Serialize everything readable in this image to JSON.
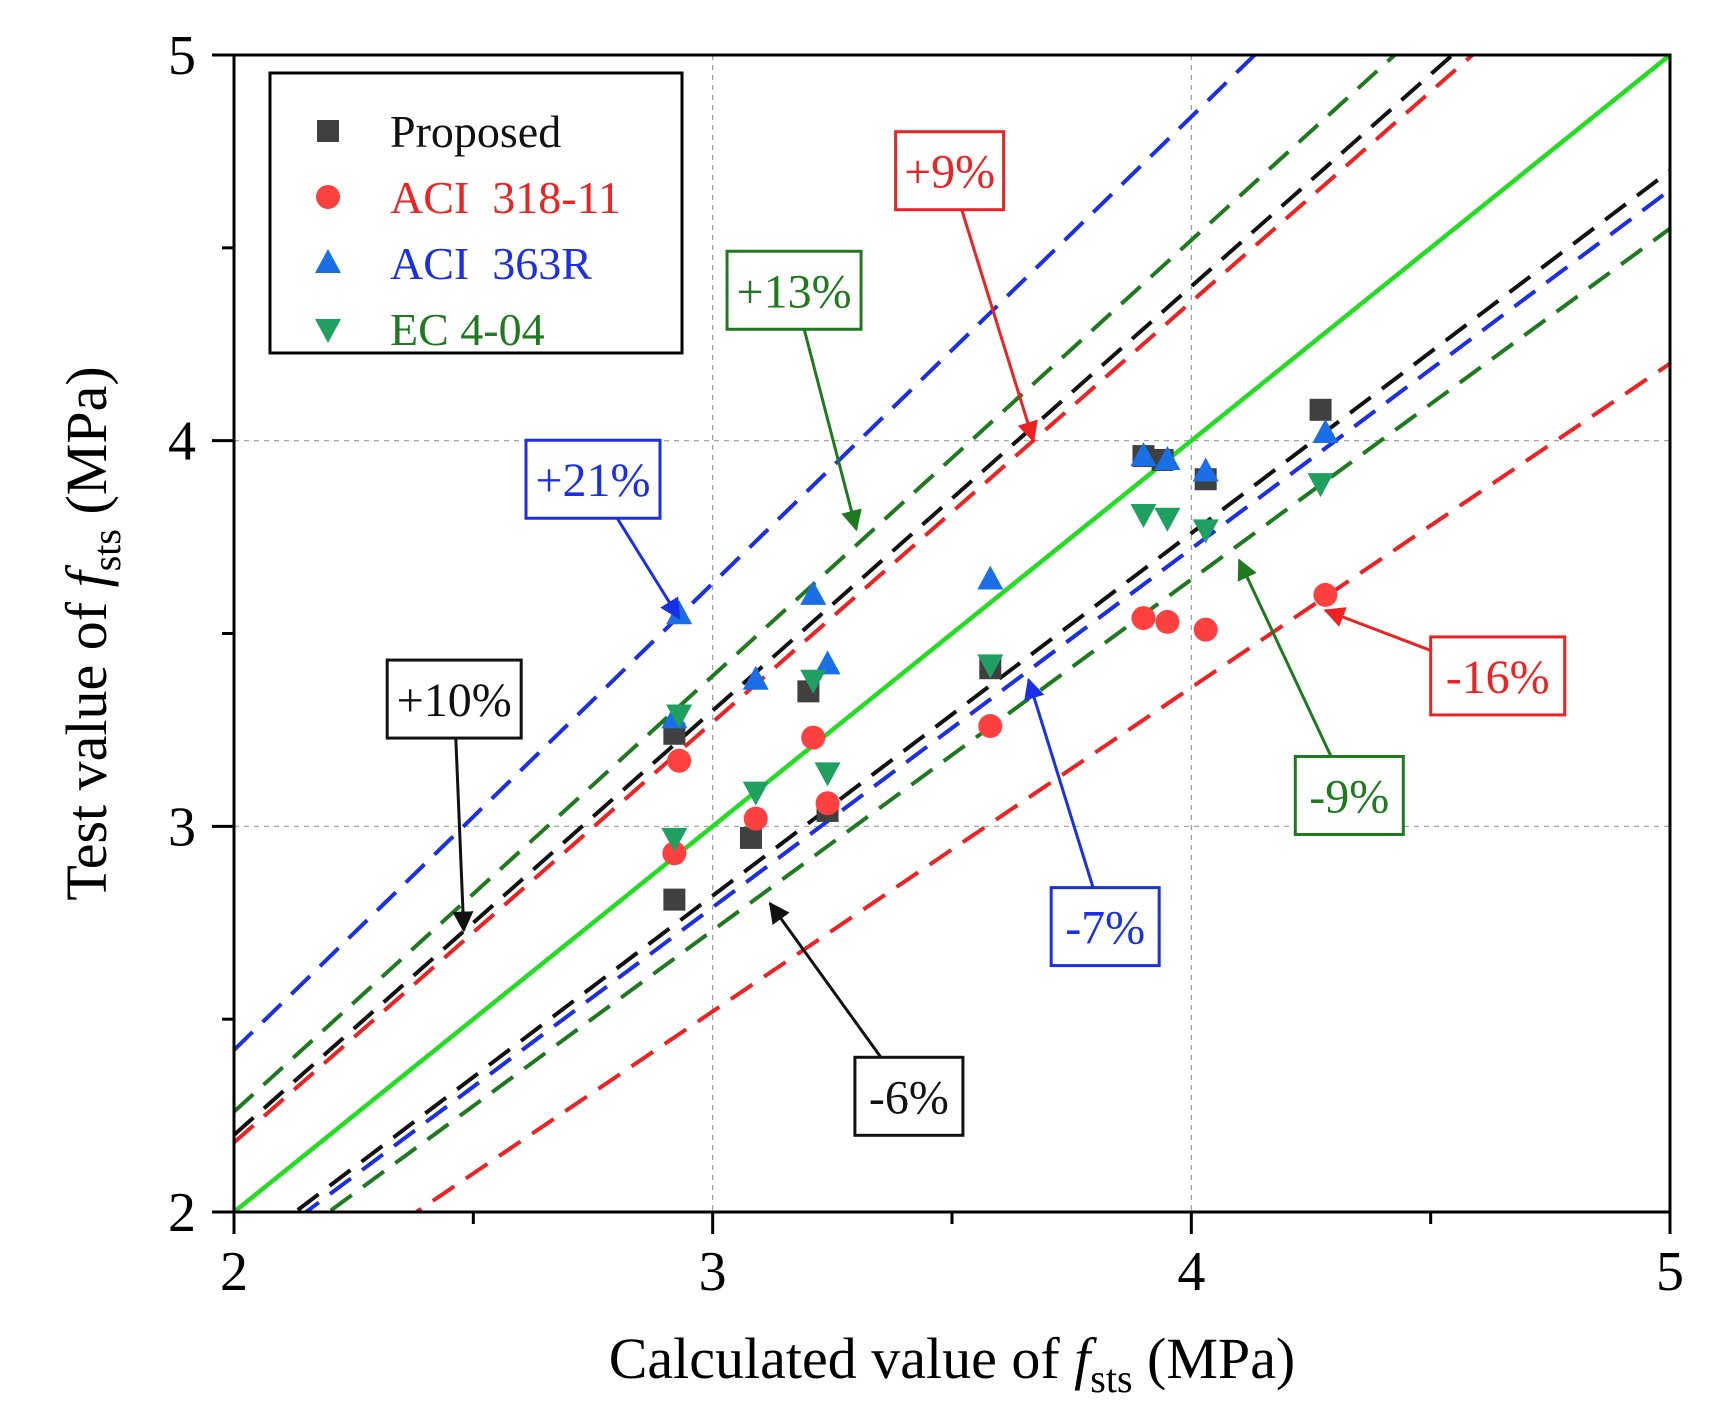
{
  "chart_data": {
    "type": "scatter",
    "xlabel": {
      "prefix": "Calculated value of ",
      "symbol": "f",
      "subscript": "sts",
      "suffix": " (MPa)"
    },
    "ylabel": {
      "prefix": "Test value of ",
      "symbol": "f",
      "subscript": "sts",
      "suffix": " (MPa)"
    },
    "xlim": [
      2,
      5
    ],
    "ylim": [
      2,
      5
    ],
    "xticks": [
      2,
      3,
      4,
      5
    ],
    "yticks": [
      2,
      3,
      4,
      5
    ],
    "minor_tick_step": 0.5,
    "grid": {
      "on": true,
      "lines_x": [
        3,
        4
      ],
      "lines_y": [
        3,
        4
      ],
      "style": "dashed"
    },
    "legend": {
      "position": "top-left"
    },
    "series": [
      {
        "name": "Proposed",
        "marker": "square",
        "color": "#404040",
        "points": [
          [
            2.92,
            3.24
          ],
          [
            2.92,
            2.81
          ],
          [
            3.08,
            2.97
          ],
          [
            3.2,
            3.35
          ],
          [
            3.24,
            3.04
          ],
          [
            3.58,
            3.41
          ],
          [
            3.9,
            3.96
          ],
          [
            3.94,
            3.95
          ],
          [
            4.03,
            3.9
          ],
          [
            4.27,
            4.08
          ]
        ]
      },
      {
        "name": "ACI  318-11",
        "marker": "circle",
        "color": "#ff4040",
        "points": [
          [
            2.93,
            3.17
          ],
          [
            2.92,
            2.93
          ],
          [
            3.09,
            3.02
          ],
          [
            3.21,
            3.23
          ],
          [
            3.24,
            3.06
          ],
          [
            3.58,
            3.26
          ],
          [
            3.9,
            3.54
          ],
          [
            3.95,
            3.53
          ],
          [
            4.03,
            3.51
          ],
          [
            4.28,
            3.6
          ]
        ]
      },
      {
        "name": "ACI  363R",
        "marker": "triangle-up",
        "color": "#1a6fe6",
        "points": [
          [
            2.93,
            3.55
          ],
          [
            2.92,
            3.28
          ],
          [
            3.09,
            3.38
          ],
          [
            3.21,
            3.6
          ],
          [
            3.24,
            3.42
          ],
          [
            3.58,
            3.64
          ],
          [
            3.9,
            3.96
          ],
          [
            3.95,
            3.95
          ],
          [
            4.03,
            3.92
          ],
          [
            4.28,
            4.02
          ]
        ]
      },
      {
        "name": "EC 4-04",
        "marker": "triangle-down",
        "color": "#20a060",
        "points": [
          [
            2.93,
            3.29
          ],
          [
            2.92,
            2.97
          ],
          [
            3.09,
            3.09
          ],
          [
            3.21,
            3.38
          ],
          [
            3.24,
            3.14
          ],
          [
            3.58,
            3.42
          ],
          [
            3.9,
            3.81
          ],
          [
            3.95,
            3.8
          ],
          [
            4.03,
            3.77
          ],
          [
            4.27,
            3.89
          ]
        ]
      }
    ],
    "reference_line": {
      "label": "y = x",
      "slope": 1,
      "color": "#22dd22"
    },
    "bound_lines": [
      {
        "slope": 1.21,
        "color": "#1a2fe6",
        "label": "+21%"
      },
      {
        "slope": 1.13,
        "color": "#1f7a1f",
        "label": "+13%"
      },
      {
        "slope": 1.1,
        "color": "#111111",
        "label": "+10%"
      },
      {
        "slope": 1.09,
        "color": "#ee2222",
        "label": "+9%"
      },
      {
        "slope": 0.94,
        "color": "#111111",
        "label": "-6%"
      },
      {
        "slope": 0.93,
        "color": "#1a2fe6",
        "label": "-7%"
      },
      {
        "slope": 0.91,
        "color": "#1f7a1f",
        "label": "-9%"
      },
      {
        "slope": 0.84,
        "color": "#ee2222",
        "label": "-16%"
      }
    ],
    "annotations": [
      {
        "text": "+9%",
        "color": "#ee2222",
        "box_center": [
          3.495,
          4.7
        ],
        "arrow_to": [
          3.67,
          4.0
        ]
      },
      {
        "text": "+13%",
        "color": "#1f7a1f",
        "box_center": [
          3.17,
          4.39
        ],
        "arrow_to": [
          3.3,
          3.77
        ]
      },
      {
        "text": "+21%",
        "color": "#1a2fe6",
        "box_center": [
          2.75,
          3.9
        ],
        "arrow_to": [
          2.93,
          3.54
        ]
      },
      {
        "text": "+10%",
        "color": "#111111",
        "box_center": [
          2.46,
          3.33
        ],
        "arrow_to": [
          2.48,
          2.73
        ]
      },
      {
        "text": "-6%",
        "color": "#111111",
        "box_center": [
          3.41,
          2.3
        ],
        "arrow_to": [
          3.12,
          2.8
        ]
      },
      {
        "text": "-7%",
        "color": "#1a2fe6",
        "box_center": [
          3.82,
          2.74
        ],
        "arrow_to": [
          3.66,
          3.38
        ]
      },
      {
        "text": "-9%",
        "color": "#1f7a1f",
        "box_center": [
          4.33,
          3.08
        ],
        "arrow_to": [
          4.1,
          3.69
        ]
      },
      {
        "text": "-16%",
        "color": "#ee2222",
        "box_center": [
          4.64,
          3.39
        ],
        "arrow_to": [
          4.28,
          3.56
        ]
      }
    ]
  }
}
